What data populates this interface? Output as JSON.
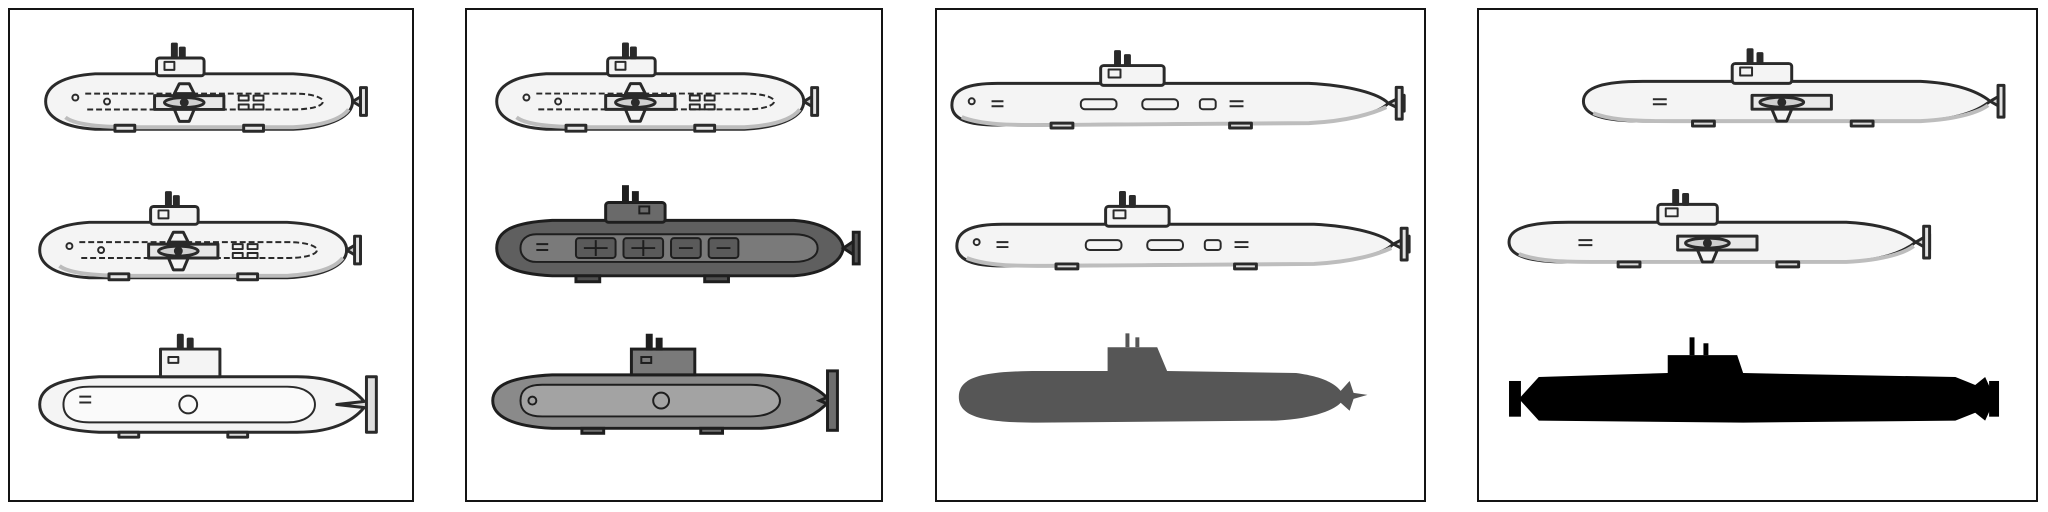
{
  "sheet": {
    "panels": [
      {
        "name": "panel-1",
        "sprites": [
          {
            "name": "sub-topdeck-a",
            "style": "outline"
          },
          {
            "name": "sub-topdeck-b",
            "style": "outline"
          },
          {
            "name": "sub-side-plain",
            "style": "outline"
          }
        ]
      },
      {
        "name": "panel-2",
        "sprites": [
          {
            "name": "sub-topdeck-light",
            "style": "outline"
          },
          {
            "name": "sub-topdeck-dark",
            "style": "dark-gray"
          },
          {
            "name": "sub-side-gray",
            "style": "mid-gray"
          }
        ]
      },
      {
        "name": "panel-3",
        "sprites": [
          {
            "name": "sub-long-a",
            "style": "outline"
          },
          {
            "name": "sub-long-b",
            "style": "outline"
          },
          {
            "name": "sub-silhouette-gray",
            "style": "gray-silhouette"
          }
        ]
      },
      {
        "name": "panel-4",
        "sprites": [
          {
            "name": "sub-sleek-a",
            "style": "outline"
          },
          {
            "name": "sub-sleek-b",
            "style": "outline"
          },
          {
            "name": "sub-silhouette-black",
            "style": "black-silhouette"
          }
        ]
      }
    ],
    "colors": {
      "border": "#141414",
      "outline": "#2a2a2a",
      "hull_light": "#f4f4f4",
      "hull_shade": "#dcdcdc",
      "dark_gray": "#5f5f5f",
      "mid_gray": "#8a8a8a",
      "silhouette_gray": "#565656",
      "silhouette_black": "#000000"
    }
  }
}
